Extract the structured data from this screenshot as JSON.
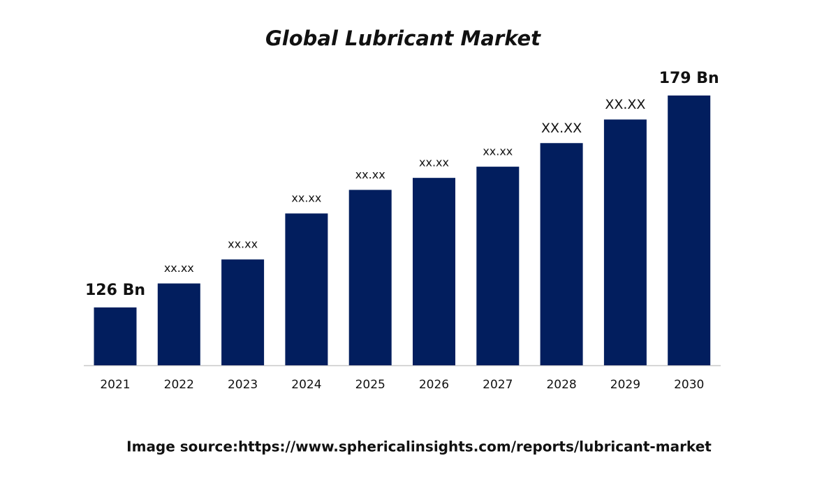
{
  "chart_data": {
    "type": "bar",
    "title": "Global Lubricant Market",
    "categories": [
      "2021",
      "2022",
      "2023",
      "2024",
      "2025",
      "2026",
      "2027",
      "2028",
      "2029",
      "2030"
    ],
    "values": [
      126,
      132,
      138,
      149.5,
      155.4,
      158.4,
      161.2,
      167.1,
      173,
      179
    ],
    "value_labels": [
      "126 Bn",
      "xx.xx",
      "xx.xx",
      "xx.xx",
      "xx.xx",
      "xx.xx",
      "xx.xx",
      "XX.XX",
      "XX.XX",
      "179 Bn"
    ],
    "color": "#021e5e",
    "source": "Image source:https://www.sphericalinsights.com/reports/lubricant-market"
  }
}
